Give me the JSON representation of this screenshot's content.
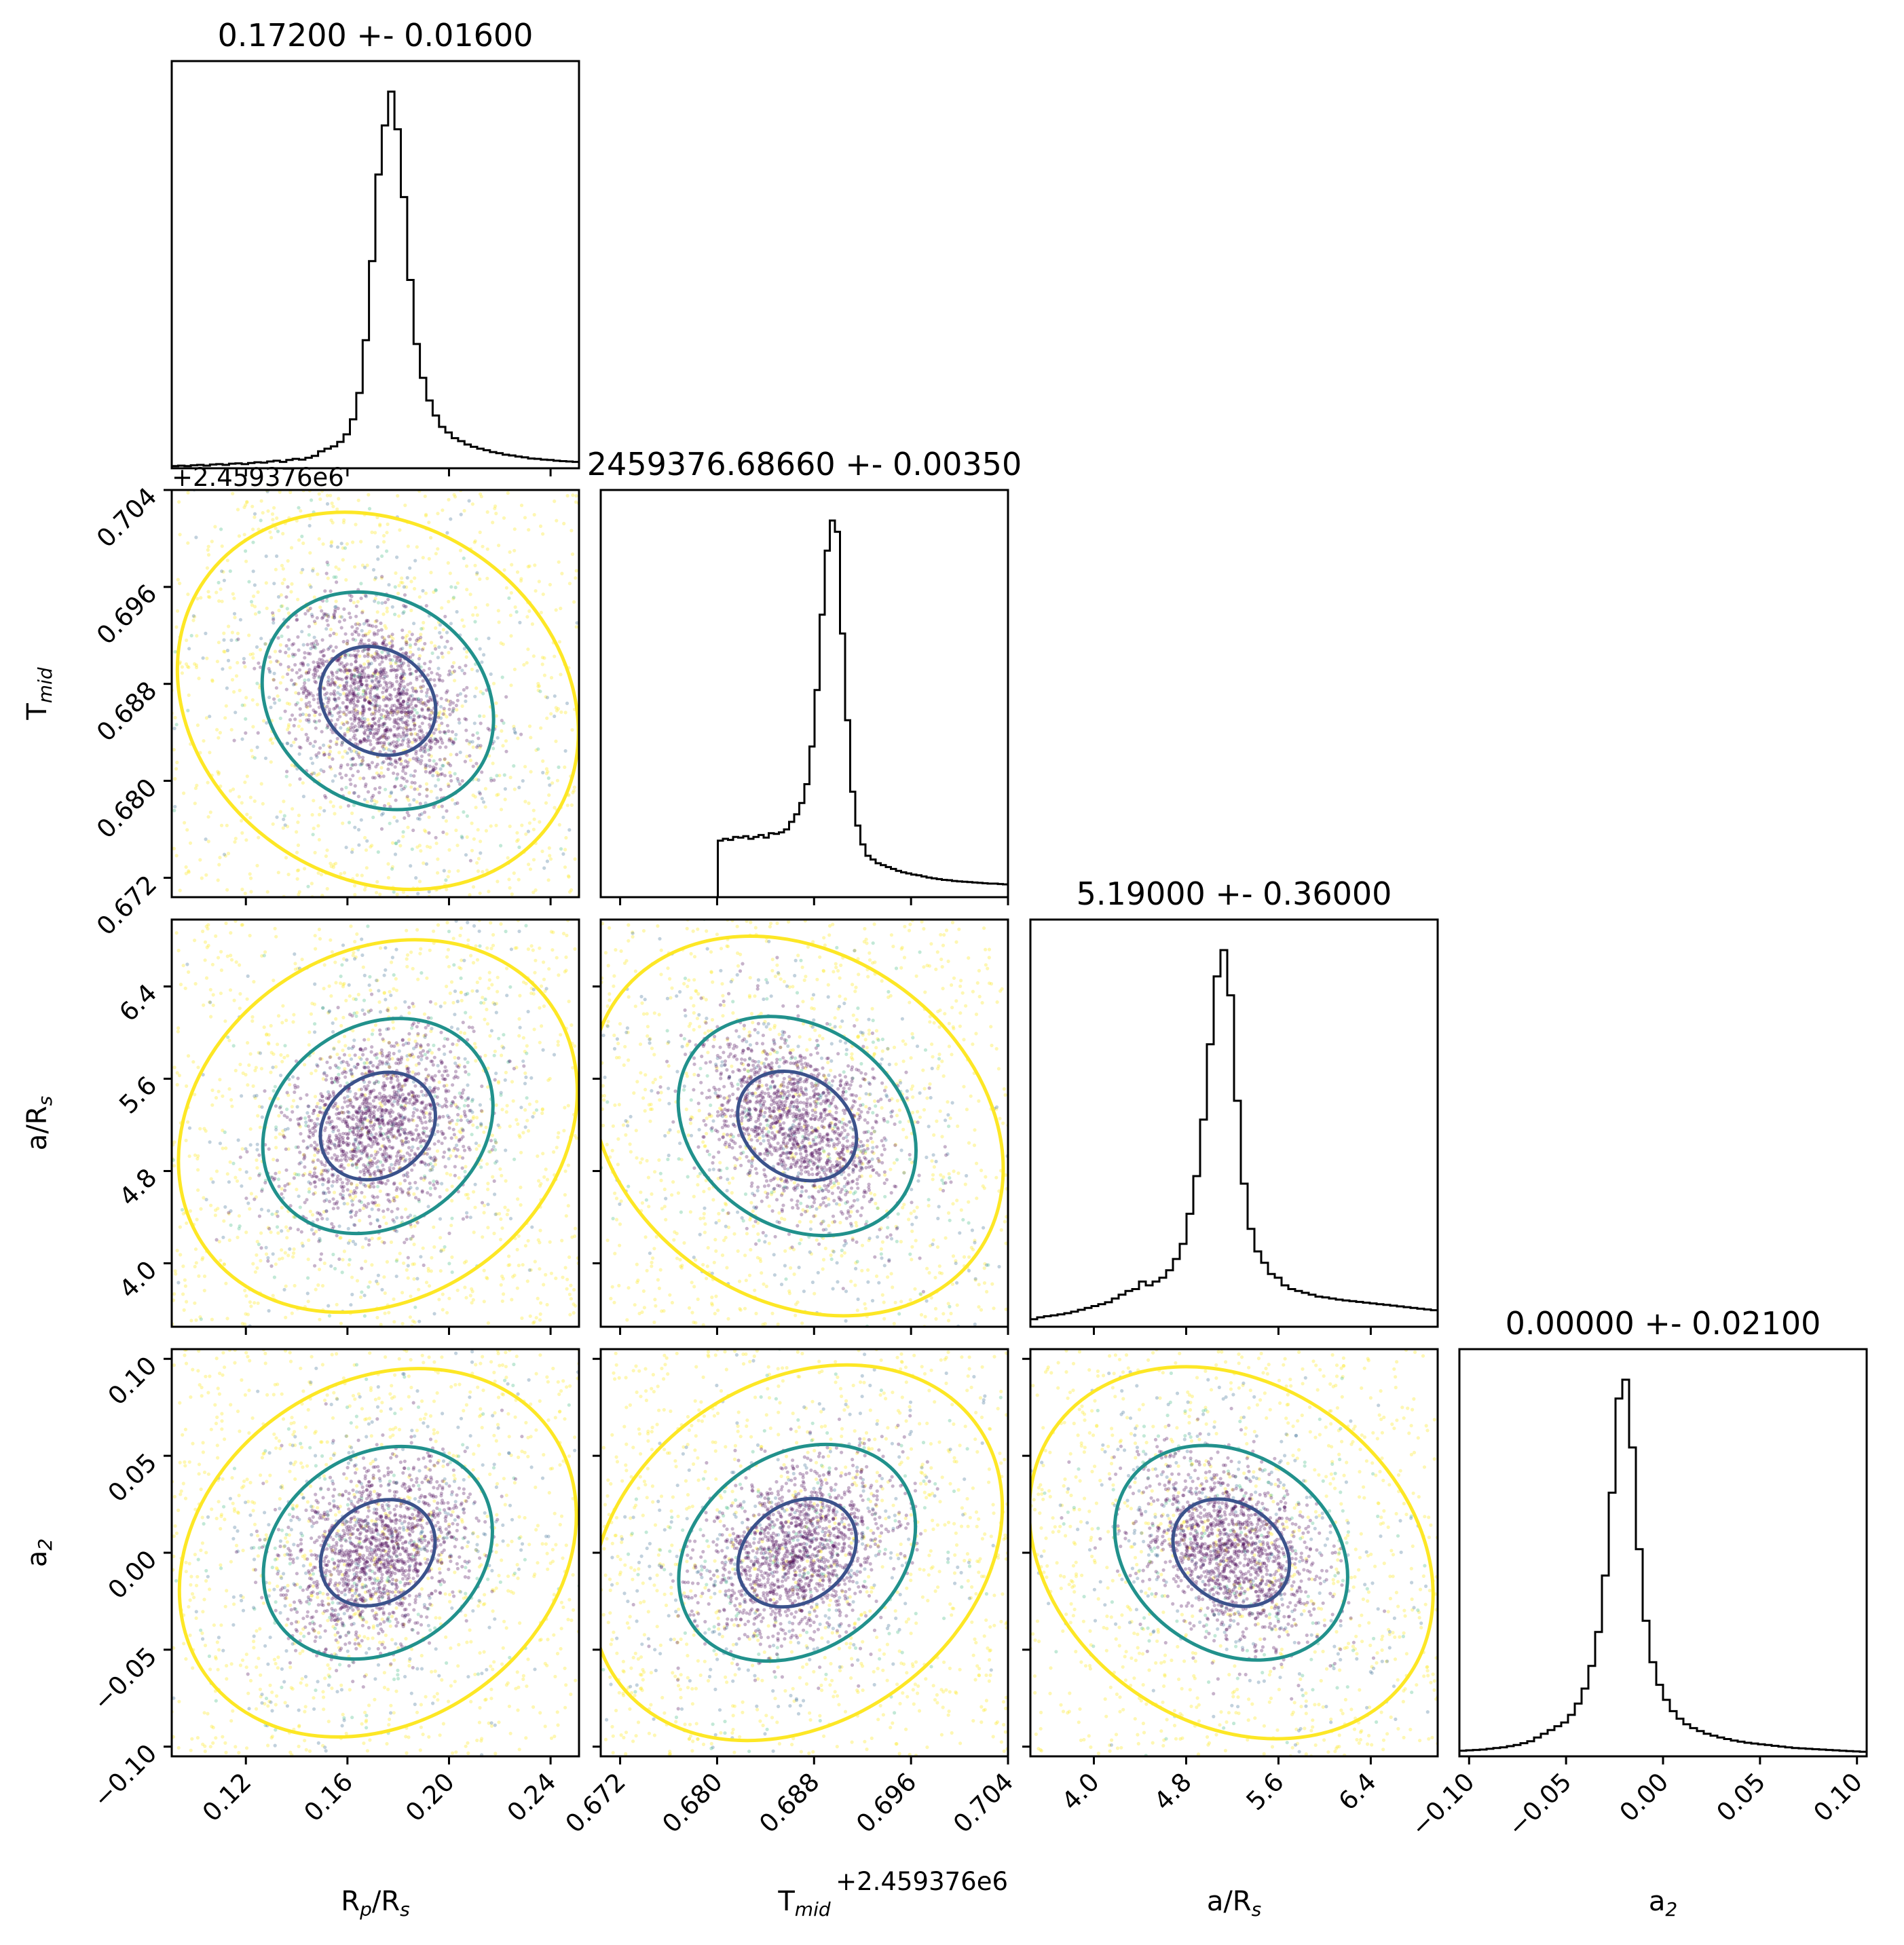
{
  "chart_data": {
    "type": "corner",
    "params": [
      {
        "key": "rprs",
        "label": "R",
        "sub": "p",
        "label2": "/R",
        "sub2": "s",
        "lim": [
          0.0908,
          0.2512
        ],
        "ticks": [
          "0.12",
          "0.16",
          "0.20",
          "0.24"
        ],
        "tick_values": [
          0.12,
          0.16,
          0.2,
          0.24
        ],
        "title": "0.17200 +- 0.01600",
        "center": 0.172,
        "spread": 0.016
      },
      {
        "key": "tmid",
        "label": "T",
        "sub": "mid",
        "label2": "",
        "sub2": "",
        "lim": [
          0.6704,
          0.704
        ],
        "ticks": [
          "0.672",
          "0.680",
          "0.688",
          "0.696",
          "0.704"
        ],
        "tick_values": [
          0.672,
          0.68,
          0.688,
          0.696,
          0.704
        ],
        "title": "2459376.68660 +- 0.00350",
        "center": 0.6866,
        "spread": 0.0035,
        "offset": "+2.459376e6"
      },
      {
        "key": "ars",
        "label": "a/R",
        "sub": "s",
        "label2": "",
        "sub2": "",
        "lim": [
          3.45,
          6.98
        ],
        "ticks": [
          "4.0",
          "4.8",
          "5.6",
          "6.4"
        ],
        "tick_values": [
          4.0,
          4.8,
          5.6,
          6.4
        ],
        "title": "5.19000 +- 0.36000",
        "center": 5.19,
        "spread": 0.36
      },
      {
        "key": "a2",
        "label": "a",
        "sub": "2",
        "label2": "",
        "sub2": "",
        "lim": [
          -0.105,
          0.105
        ],
        "ticks": [
          "−0.10",
          "−0.05",
          "0.00",
          "0.05",
          "0.10"
        ],
        "tick_values": [
          -0.1,
          -0.05,
          0.0,
          0.05,
          0.1
        ],
        "title": "0.00000 +- 0.02100",
        "center": 0.0,
        "spread": 0.021
      }
    ],
    "histograms": [
      [
        0.006,
        0.007,
        0.006,
        0.008,
        0.009,
        0.007,
        0.01,
        0.011,
        0.009,
        0.012,
        0.013,
        0.011,
        0.014,
        0.016,
        0.015,
        0.018,
        0.02,
        0.017,
        0.022,
        0.025,
        0.023,
        0.028,
        0.033,
        0.045,
        0.052,
        0.058,
        0.07,
        0.09,
        0.13,
        0.2,
        0.34,
        0.55,
        0.78,
        0.91,
        1.0,
        0.9,
        0.72,
        0.5,
        0.33,
        0.24,
        0.18,
        0.14,
        0.11,
        0.095,
        0.08,
        0.072,
        0.063,
        0.057,
        0.052,
        0.048,
        0.043,
        0.04,
        0.036,
        0.034,
        0.031,
        0.029,
        0.026,
        0.025,
        0.023,
        0.022,
        0.02,
        0.019,
        0.018,
        0.017
      ],
      [
        0,
        0,
        0,
        0,
        0,
        0,
        0,
        0,
        0,
        0,
        0,
        0,
        0,
        0,
        0,
        0,
        0,
        0,
        0,
        0,
        0,
        0,
        0,
        0.15,
        0.155,
        0.152,
        0.16,
        0.158,
        0.162,
        0.155,
        0.16,
        0.165,
        0.158,
        0.17,
        0.168,
        0.172,
        0.18,
        0.2,
        0.22,
        0.25,
        0.3,
        0.4,
        0.55,
        0.75,
        0.92,
        1.0,
        0.97,
        0.7,
        0.47,
        0.28,
        0.19,
        0.14,
        0.11,
        0.1,
        0.09,
        0.085,
        0.08,
        0.075,
        0.07,
        0.066,
        0.063,
        0.06,
        0.058,
        0.055,
        0.052,
        0.05,
        0.048,
        0.046,
        0.045,
        0.043,
        0.042,
        0.041,
        0.04,
        0.039,
        0.038,
        0.037,
        0.036,
        0.036,
        0.035,
        0.034
      ],
      [
        0.02,
        0.025,
        0.028,
        0.03,
        0.033,
        0.036,
        0.04,
        0.045,
        0.05,
        0.055,
        0.06,
        0.065,
        0.075,
        0.085,
        0.095,
        0.1,
        0.12,
        0.11,
        0.12,
        0.13,
        0.15,
        0.18,
        0.22,
        0.3,
        0.4,
        0.55,
        0.75,
        0.93,
        1.0,
        0.88,
        0.6,
        0.38,
        0.26,
        0.2,
        0.17,
        0.14,
        0.13,
        0.11,
        0.1,
        0.095,
        0.09,
        0.085,
        0.08,
        0.078,
        0.075,
        0.072,
        0.07,
        0.068,
        0.066,
        0.064,
        0.062,
        0.06,
        0.058,
        0.056,
        0.054,
        0.052,
        0.05,
        0.048,
        0.046,
        0.044
      ],
      [
        0.015,
        0.016,
        0.017,
        0.018,
        0.02,
        0.022,
        0.024,
        0.027,
        0.03,
        0.035,
        0.04,
        0.05,
        0.06,
        0.07,
        0.08,
        0.09,
        0.11,
        0.14,
        0.18,
        0.24,
        0.33,
        0.48,
        0.7,
        0.95,
        1.0,
        0.82,
        0.55,
        0.36,
        0.25,
        0.19,
        0.15,
        0.12,
        0.1,
        0.085,
        0.075,
        0.067,
        0.06,
        0.055,
        0.05,
        0.046,
        0.042,
        0.039,
        0.036,
        0.034,
        0.032,
        0.03,
        0.028,
        0.026,
        0.024,
        0.022,
        0.021,
        0.02,
        0.019,
        0.018,
        0.017,
        0.016,
        0.015,
        0.014,
        0.013,
        0.012
      ]
    ],
    "legend": "none",
    "grid": false
  },
  "colors": {
    "contour_outer": "#fde725",
    "contour_mid": "#21918c",
    "contour_inner": "#3b528b",
    "points_core": "#440154",
    "points_mid": "#31688e",
    "points_outer": "#fde725"
  }
}
